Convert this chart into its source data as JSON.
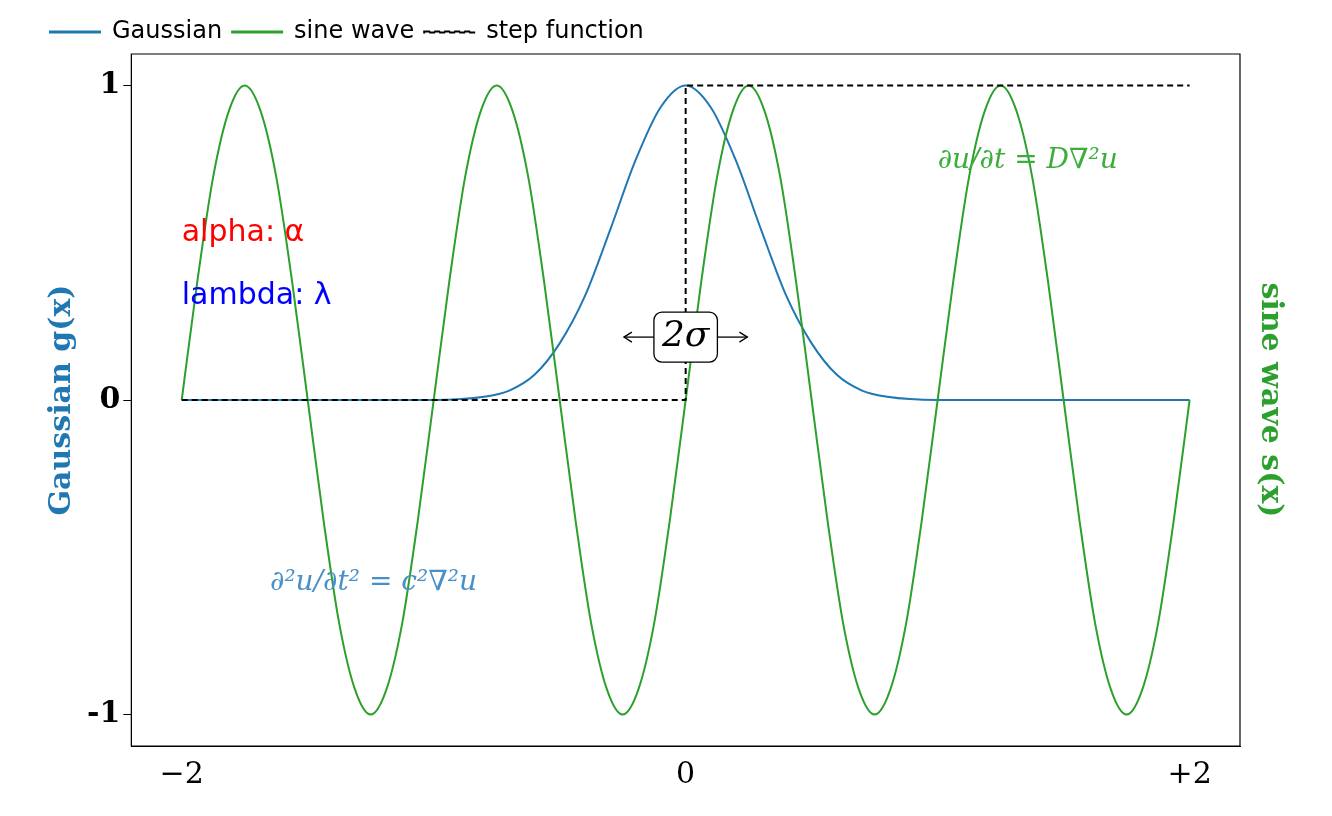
{
  "chart_data": {
    "type": "line",
    "ylabel": "Gaussian g(x)",
    "y2label": "sine wave s(x)",
    "xlim": [
      -2.2,
      2.2
    ],
    "xticks": [
      {
        "value": -2,
        "label": "−2"
      },
      0,
      {
        "value": 2,
        "label": "+2"
      }
    ],
    "ylim": [
      -1.1,
      1.1
    ],
    "yticks": [
      -1,
      0,
      1
    ],
    "legend": "top left",
    "grid": false,
    "series": [
      {
        "name": "Gaussian",
        "color": "#1f77b4",
        "type": "line",
        "x": [
          -2,
          -1.5,
          -1.2,
          -1,
          -0.8,
          -0.7,
          -0.6,
          -0.5,
          -0.4,
          -0.3,
          -0.2,
          -0.1,
          0,
          0.1,
          0.2,
          0.3,
          0.4,
          0.5,
          0.6,
          0.7,
          0.8,
          1,
          1.2,
          1.5,
          2
        ],
        "values": [
          0,
          0,
          0,
          0,
          0.01,
          0.03,
          0.08,
          0.18,
          0.33,
          0.54,
          0.76,
          0.93,
          1,
          0.93,
          0.76,
          0.54,
          0.33,
          0.18,
          0.08,
          0.03,
          0.01,
          0,
          0,
          0,
          0
        ]
      },
      {
        "name": "sine wave",
        "color": "#2ca02c",
        "type": "line",
        "x": [
          -2,
          -1.9375,
          -1.875,
          -1.8125,
          -1.75,
          -1.6875,
          -1.625,
          -1.5625,
          -1.5,
          -1.4375,
          -1.375,
          -1.3125,
          -1.25,
          -1.1875,
          -1.125,
          -1.0625,
          -1,
          -0.9375,
          -0.875,
          -0.8125,
          -0.75,
          -0.6875,
          -0.625,
          -0.5625,
          -0.5,
          -0.4375,
          -0.375,
          -0.3125,
          -0.25,
          -0.1875,
          -0.125,
          -0.0625,
          0,
          0.0625,
          0.125,
          0.1875,
          0.25,
          0.3125,
          0.375,
          0.4375,
          0.5,
          0.5625,
          0.625,
          0.6875,
          0.75,
          0.8125,
          0.875,
          0.9375,
          1,
          1.0625,
          1.125,
          1.1875,
          1.25,
          1.3125,
          1.375,
          1.4375,
          1.5,
          1.5625,
          1.625,
          1.6875,
          1.75,
          1.8125,
          1.875,
          1.9375,
          2
        ],
        "values": [
          0,
          0.38,
          0.71,
          0.92,
          1,
          0.92,
          0.71,
          0.38,
          0,
          -0.38,
          -0.71,
          -0.92,
          -1,
          -0.92,
          -0.71,
          -0.38,
          0,
          0.38,
          0.71,
          0.92,
          1,
          0.92,
          0.71,
          0.38,
          0,
          -0.38,
          -0.71,
          -0.92,
          -1,
          -0.92,
          -0.71,
          -0.38,
          0,
          0.38,
          0.71,
          0.92,
          1,
          0.92,
          0.71,
          0.38,
          0,
          -0.38,
          -0.71,
          -0.92,
          -1,
          -0.92,
          -0.71,
          -0.38,
          0,
          0.38,
          0.71,
          0.92,
          1,
          0.92,
          0.71,
          0.38,
          0,
          -0.38,
          -0.71,
          -0.92,
          -1,
          -0.92,
          -0.71,
          -0.38,
          0
        ]
      },
      {
        "name": "step function",
        "color": "#000000",
        "type": "step",
        "line_style": "dashed",
        "x": [
          -2,
          0,
          2
        ],
        "values": [
          0,
          1,
          1
        ]
      }
    ],
    "annotations": [
      {
        "text": "2σ",
        "x": 0,
        "y": 0.2
      },
      "alpha: α",
      "lambda: λ",
      "∂²u/∂t² = c²∇²u",
      "∂u/∂t = D∇²u"
    ]
  }
}
